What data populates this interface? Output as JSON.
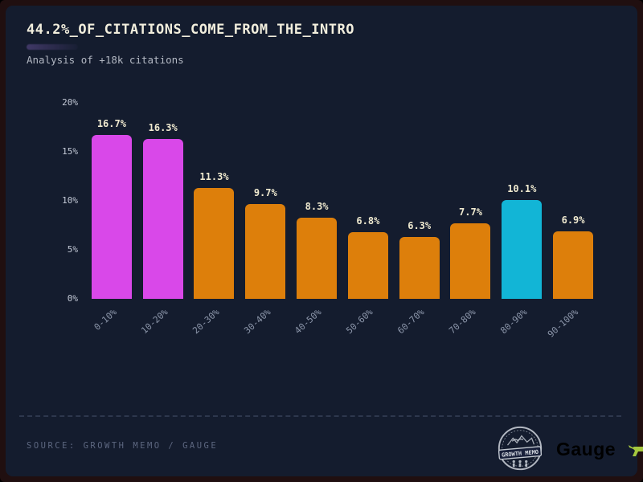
{
  "header": {
    "title": "44.2%_OF_CITATIONS_COME_FROM_THE_INTRO",
    "subtitle": "Analysis of +18k citations"
  },
  "footer": {
    "source_label": "SOURCE: GROWTH MEMO / GAUGE",
    "badge_text": "GROWTH MEMO",
    "brand": "Gauge"
  },
  "colors": {
    "background": "#141c2e",
    "border": "#200f10",
    "magenta": "#d948e9",
    "orange": "#dd7f0b",
    "cyan": "#12b5d6",
    "value_label": "#efe9cf",
    "axis_label": "#8d97ab",
    "brand_green": "#a6c83e"
  },
  "chart_data": {
    "type": "bar",
    "title": "44.2%_OF_CITATIONS_COME_FROM_THE_INTRO",
    "subtitle": "Analysis of +18k citations",
    "categories": [
      "0-10%",
      "10-20%",
      "20-30%",
      "30-40%",
      "40-50%",
      "50-60%",
      "60-70%",
      "70-80%",
      "80-90%",
      "90-100%"
    ],
    "values": [
      16.7,
      16.3,
      11.3,
      9.7,
      8.3,
      6.8,
      6.3,
      7.7,
      10.1,
      6.9
    ],
    "value_labels": [
      "16.7%",
      "16.3%",
      "11.3%",
      "9.7%",
      "8.3%",
      "6.8%",
      "6.3%",
      "7.7%",
      "10.1%",
      "6.9%"
    ],
    "bar_colors": [
      "#d948e9",
      "#d948e9",
      "#dd7f0b",
      "#dd7f0b",
      "#dd7f0b",
      "#dd7f0b",
      "#dd7f0b",
      "#dd7f0b",
      "#12b5d6",
      "#dd7f0b"
    ],
    "xlabel": "",
    "ylabel": "",
    "ylim": [
      0,
      20
    ],
    "yticks": [
      "20%",
      "15%",
      "10%",
      "5%",
      "0%"
    ],
    "grid": false,
    "legend": null
  }
}
